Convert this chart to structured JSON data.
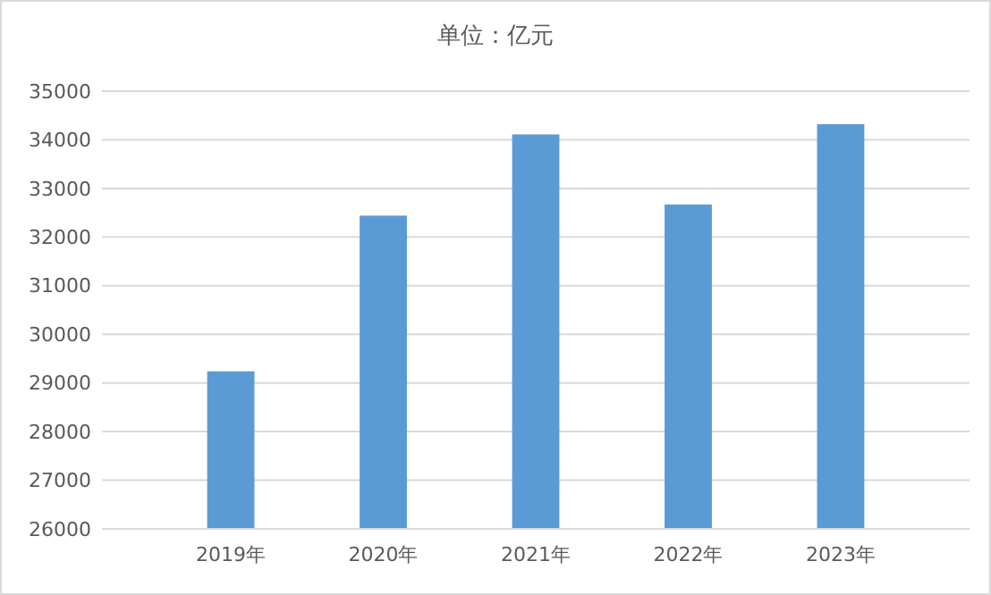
{
  "chart_data": {
    "type": "bar",
    "title": "单位：亿元",
    "categories": [
      "2019年",
      "2020年",
      "2021年",
      "2022年",
      "2023年"
    ],
    "values": [
      29240,
      32440,
      34110,
      32670,
      34320
    ],
    "color": "#5b9bd5",
    "ylim": [
      26000,
      35000
    ],
    "yticks": [
      26000,
      27000,
      28000,
      29000,
      30000,
      31000,
      32000,
      33000,
      34000,
      35000
    ],
    "grid": "y"
  }
}
